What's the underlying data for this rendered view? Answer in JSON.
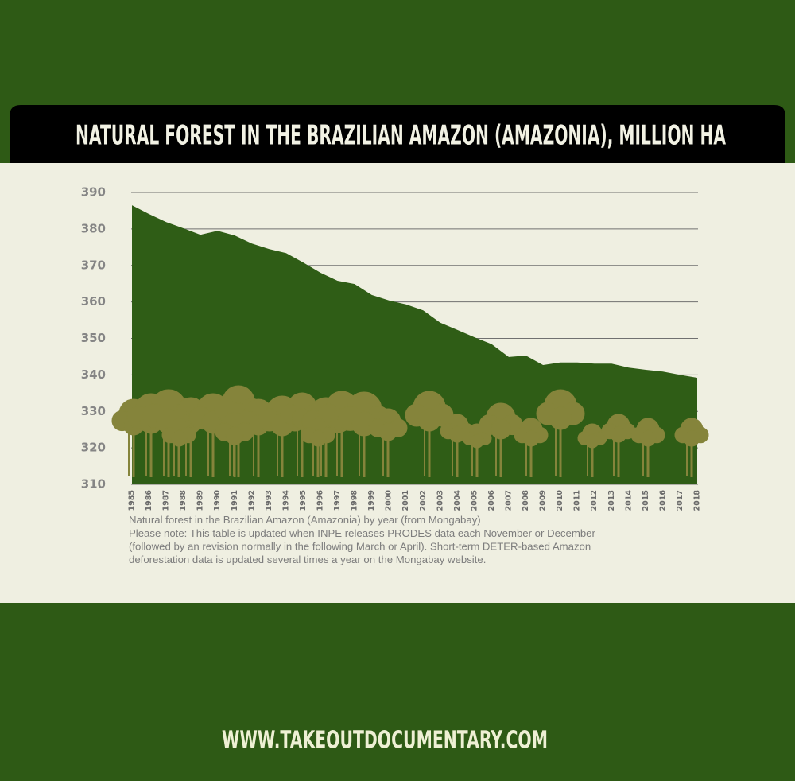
{
  "chart_data": {
    "type": "area",
    "title": "NATURAL FOREST IN THE BRAZILIAN AMAZON (AMAZONIA), MILLION HA",
    "caption": "Natural forest in the Brazilian Amazon (Amazonia) by year (from Mongabay)",
    "note_lines": [
      "Please note: This table is updated when INPE releases PRODES data each November or December",
      "(followed by an revision normally in the following March or April). Short-term DETER-based Amazon",
      "deforestation data is updated several times a year on the Mongabay website."
    ],
    "categories": [
      "1985",
      "1986",
      "1987",
      "1988",
      "1989",
      "1990",
      "1991",
      "1992",
      "1993",
      "1994",
      "1995",
      "1996",
      "1997",
      "1998",
      "1999",
      "2000",
      "2001",
      "2002",
      "2003",
      "2004",
      "2005",
      "2006",
      "2007",
      "2008",
      "2009",
      "2010",
      "2011",
      "2012",
      "2013",
      "2014",
      "2015",
      "2016",
      "2017",
      "2018"
    ],
    "values": [
      386.5,
      384.1,
      381.9,
      380.2,
      378.4,
      379.5,
      378.2,
      376.0,
      374.5,
      373.4,
      370.8,
      368.0,
      365.8,
      364.9,
      361.9,
      360.4,
      359.3,
      357.7,
      354.3,
      352.3,
      350.3,
      348.4,
      344.9,
      345.3,
      342.7,
      343.4,
      343.4,
      343.1,
      343.1,
      342.0,
      341.4,
      340.9,
      340.0,
      339.2
    ],
    "color": "#2f5d16",
    "ylim": [
      310,
      390
    ],
    "yticks": [
      310,
      320,
      330,
      340,
      350,
      360,
      370,
      380,
      390
    ],
    "grid": true
  },
  "footer": "WWW.TAKEOUTDOCUMENTARY.COM"
}
